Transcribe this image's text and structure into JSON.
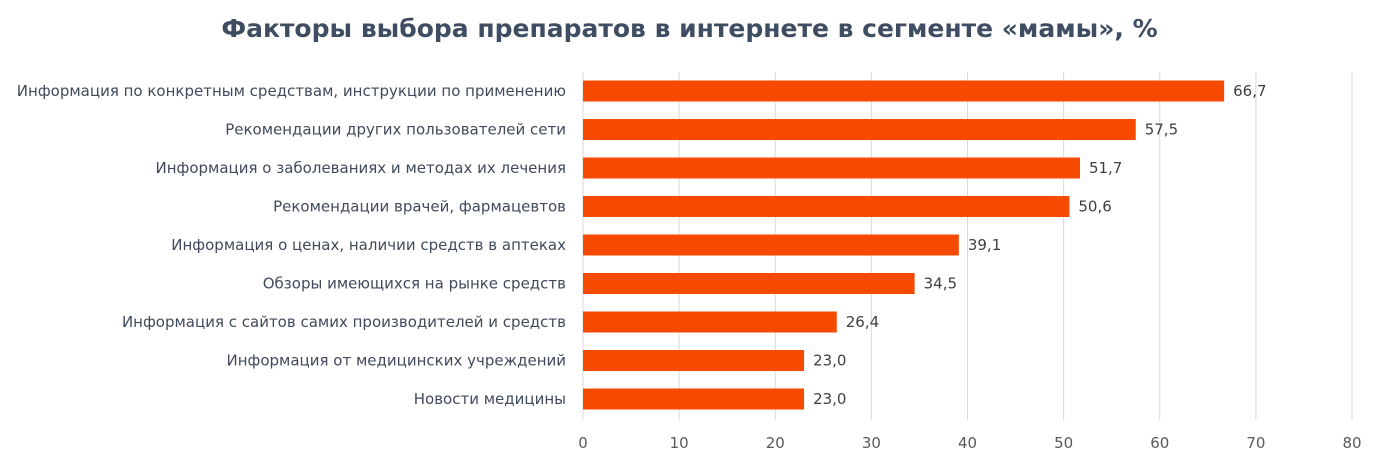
{
  "chart_data": {
    "type": "bar",
    "orientation": "horizontal",
    "title": "Факторы выбора препаратов в интернете в сегменте «мамы», %",
    "categories": [
      "Информация по конкретным средствам, инструкции по применению",
      "Рекомендации других пользователей сети",
      "Информация о заболеваниях и методах их лечения",
      "Рекомендации врачей, фармацевтов",
      "Информация о ценах, наличии средств в аптеках",
      "Обзоры имеющихся на рынке средств",
      "Информация с сайтов самих производителей и средств",
      "Информация от медицинских учреждений",
      "Новости медицины"
    ],
    "values": [
      66.7,
      57.5,
      51.7,
      50.6,
      39.1,
      34.5,
      26.4,
      23.0,
      23.0
    ],
    "value_labels": [
      "66,7",
      "57,5",
      "51,7",
      "50,6",
      "39,1",
      "34,5",
      "26,4",
      "23,0",
      "23,0"
    ],
    "xlim": [
      0,
      80
    ],
    "xticks": [
      0,
      10,
      20,
      30,
      40,
      50,
      60,
      70,
      80
    ],
    "grid": "vertical",
    "legend": "none",
    "colors": {
      "bar": "#f54a00",
      "grid": "#d9d9d9",
      "title": "#3f4d63"
    }
  }
}
